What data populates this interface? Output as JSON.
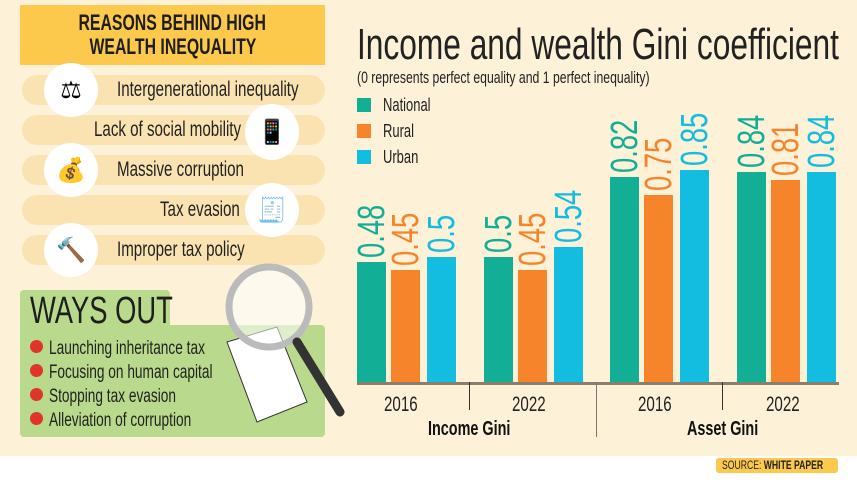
{
  "reasons": {
    "title_line1": "REASONS BEHIND HIGH",
    "title_line2": "WEALTH INEQUALITY",
    "items": [
      {
        "label": "Intergenerational inequality",
        "icon": "scales-people-icon"
      },
      {
        "label": "Lack of social mobility",
        "icon": "phone-community-icon"
      },
      {
        "label": "Massive corruption",
        "icon": "bribe-money-bag-icon"
      },
      {
        "label": "Tax evasion",
        "icon": "tax-document-icon"
      },
      {
        "label": "Improper tax policy",
        "icon": "gavel-tax-icon"
      }
    ]
  },
  "ways_out": {
    "title": "WAYS OUT",
    "items": [
      "Launching inheritance tax",
      "Focusing on human capital",
      "Stopping tax evasion",
      "Alleviation of corruption"
    ]
  },
  "chart_data": {
    "type": "bar",
    "title": "Income and wealth Gini coefficient",
    "subtitle": "(0 represents perfect equality and 1 perfect inequality)",
    "groups": [
      "Income Gini",
      "Asset Gini"
    ],
    "categories": [
      "2016",
      "2022",
      "2016",
      "2022"
    ],
    "series": [
      {
        "name": "National",
        "color": "#12ae95",
        "values": [
          0.48,
          0.5,
          0.82,
          0.84
        ],
        "labels": [
          "0.48",
          "0.5",
          "0.82",
          "0.84"
        ]
      },
      {
        "name": "Rural",
        "color": "#f5842a",
        "values": [
          0.45,
          0.45,
          0.75,
          0.81
        ],
        "labels": [
          "0.45",
          "0.45",
          "0.75",
          "0.81"
        ]
      },
      {
        "name": "Urban",
        "color": "#12bde0",
        "values": [
          0.5,
          0.54,
          0.85,
          0.84
        ],
        "labels": [
          "0.5",
          "0.54",
          "0.85",
          "0.84"
        ]
      }
    ],
    "ylim": [
      0,
      1
    ],
    "legend": "top-left",
    "grid": false
  },
  "source": {
    "prefix": "SOURCE: ",
    "name": "WHITE PAPER"
  }
}
